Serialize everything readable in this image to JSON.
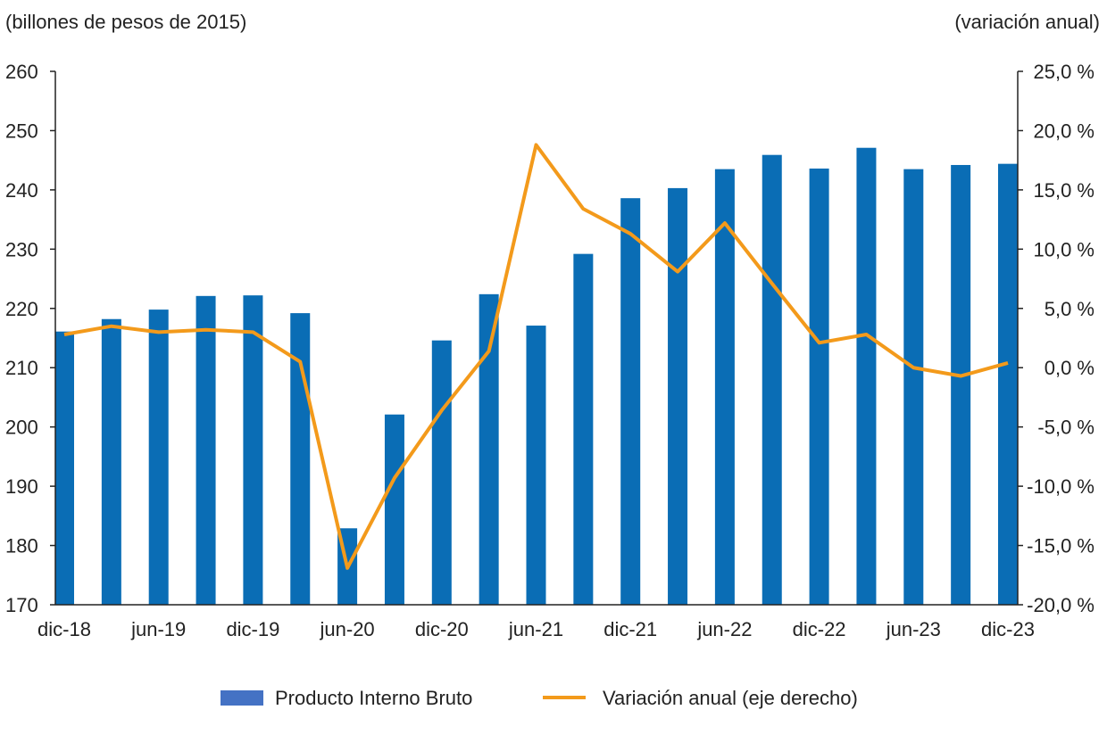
{
  "chart_data": {
    "type": "bar+line",
    "left_axis_label": "(billones de pesos de 2015)",
    "right_axis_label": "(variación anual)",
    "ylim_left": [
      170,
      260
    ],
    "yticks_left": [
      "170",
      "180",
      "190",
      "200",
      "210",
      "220",
      "230",
      "240",
      "250",
      "260"
    ],
    "ylim_right": [
      -20,
      25
    ],
    "yticks_right": [
      "-20,0 %",
      "-15,0 %",
      "-10,0 %",
      "-5,0 %",
      "0,0 %",
      "5,0 %",
      "10,0 %",
      "15,0 %",
      "20,0 %",
      "25,0 %"
    ],
    "categories": [
      "dic-18",
      "mar-19",
      "jun-19",
      "sep-19",
      "dic-19",
      "mar-20",
      "jun-20",
      "sep-20",
      "dic-20",
      "mar-21",
      "jun-21",
      "sep-21",
      "dic-21",
      "mar-22",
      "jun-22",
      "sep-22",
      "dic-22",
      "mar-23",
      "jun-23",
      "sep-23",
      "dic-23"
    ],
    "x_tick_labels": [
      "dic-18",
      "jun-19",
      "dic-19",
      "jun-20",
      "dic-20",
      "jun-21",
      "dic-21",
      "jun-22",
      "dic-22",
      "jun-23",
      "dic-23"
    ],
    "grid": false,
    "legend_position": "bottom",
    "series": [
      {
        "name": "Producto Interno Bruto",
        "type": "bar",
        "axis": "left",
        "color": "#0a6db5",
        "legend_color": "#4472c4",
        "values": [
          216.1,
          218.2,
          219.8,
          222.1,
          222.2,
          219.2,
          182.9,
          202.1,
          214.6,
          222.4,
          217.1,
          229.2,
          238.6,
          240.3,
          243.5,
          245.9,
          243.6,
          247.1,
          243.5,
          244.2,
          244.4
        ]
      },
      {
        "name": "Variación anual (eje derecho)",
        "type": "line",
        "axis": "right",
        "color": "#f39a1b",
        "values": [
          2.8,
          3.5,
          3.0,
          3.2,
          3.0,
          0.5,
          -16.9,
          -9.3,
          -3.6,
          1.4,
          18.8,
          13.4,
          11.3,
          8.1,
          12.2,
          7.1,
          2.1,
          2.8,
          0.0,
          -0.7,
          0.4
        ]
      }
    ]
  }
}
